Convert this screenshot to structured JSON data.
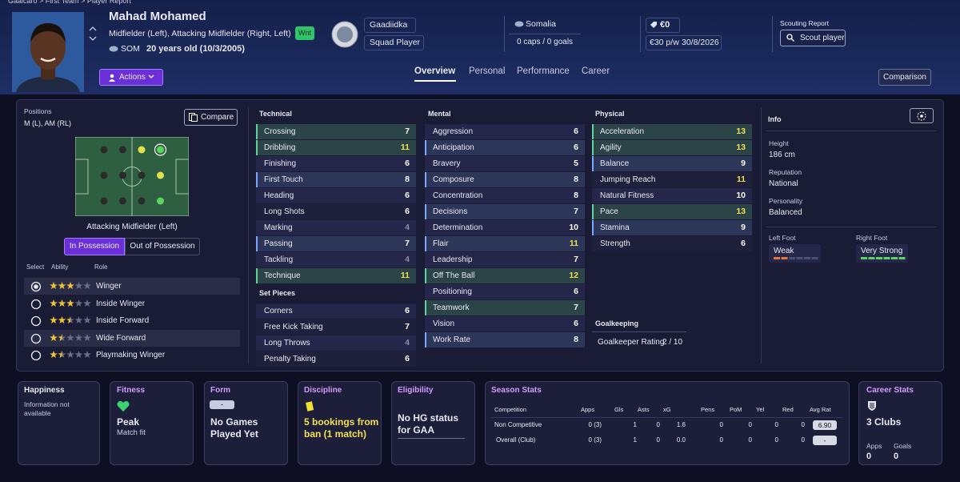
{
  "breadcrumb": "Gaalcaro > First Team > Player Report",
  "header": {
    "name": "Mahad Mohamed",
    "positions": "Midfielder (Left), Attacking Midfielder (Right, Left)",
    "badge": "Wnt",
    "nation_code": "SOM",
    "age": "20 years old (10/3/2005)",
    "club": "Gaadiidka",
    "squad_status": "Squad Player",
    "nationality": "Somalia",
    "caps": "0 caps / 0 goals",
    "value": "€0",
    "wage": "€30 p/w",
    "contract_end": "30/8/2026",
    "scouting_label": "Scouting Report",
    "scout_button": "Scout player",
    "actions": "Actions",
    "comparison": "Comparison"
  },
  "tabs": {
    "items": [
      "Overview",
      "Personal",
      "Performance",
      "Career"
    ],
    "active": 0
  },
  "positions": {
    "title": "Positions",
    "summary": "M (L), AM (RL)",
    "compare": "Compare",
    "selected_position": "Attacking Midfielder (Left)",
    "pitch_dots": [
      [
        "none",
        "none",
        "accomplished",
        "selected"
      ],
      [
        "none",
        "none",
        "none",
        "accomplished"
      ],
      [
        "none",
        "none",
        "none",
        "natural"
      ]
    ],
    "toggle": [
      "In Possession",
      "Out of Possession"
    ],
    "toggle_active": 0,
    "columns": [
      "Select",
      "Ability",
      "Role"
    ],
    "selected_role": 0,
    "roles": [
      {
        "name": "Winger",
        "stars": 3
      },
      {
        "name": "Inside Winger",
        "stars": 3
      },
      {
        "name": "Inside Forward",
        "stars": 2.5
      },
      {
        "name": "Wide Forward",
        "stars": 1.5
      },
      {
        "name": "Playmaking Winger",
        "stars": 1.5
      }
    ]
  },
  "attributes": [
    {
      "title": "Technical",
      "items": [
        {
          "name": "Crossing",
          "value": 7,
          "highlight": "key"
        },
        {
          "name": "Dribbling",
          "value": 11,
          "highlight": "key"
        },
        {
          "name": "Finishing",
          "value": 6,
          "highlight": null
        },
        {
          "name": "First Touch",
          "value": 8,
          "highlight": "preferred"
        },
        {
          "name": "Heading",
          "value": 6,
          "highlight": null
        },
        {
          "name": "Long Shots",
          "value": 6,
          "highlight": null
        },
        {
          "name": "Marking",
          "value": 4,
          "highlight": null
        },
        {
          "name": "Passing",
          "value": 7,
          "highlight": "preferred"
        },
        {
          "name": "Tackling",
          "value": 4,
          "highlight": null
        },
        {
          "name": "Technique",
          "value": 11,
          "highlight": "key"
        }
      ]
    },
    {
      "title": "Set Pieces",
      "items": [
        {
          "name": "Corners",
          "value": 6,
          "highlight": null
        },
        {
          "name": "Free Kick Taking",
          "value": 7,
          "highlight": null
        },
        {
          "name": "Long Throws",
          "value": 4,
          "highlight": null
        },
        {
          "name": "Penalty Taking",
          "value": 6,
          "highlight": null
        }
      ]
    },
    {
      "title": "Mental",
      "items": [
        {
          "name": "Aggression",
          "value": 6,
          "highlight": null
        },
        {
          "name": "Anticipation",
          "value": 6,
          "highlight": "preferred"
        },
        {
          "name": "Bravery",
          "value": 5,
          "highlight": null
        },
        {
          "name": "Composure",
          "value": 8,
          "highlight": "preferred"
        },
        {
          "name": "Concentration",
          "value": 8,
          "highlight": null
        },
        {
          "name": "Decisions",
          "value": 7,
          "highlight": "preferred"
        },
        {
          "name": "Determination",
          "value": 10,
          "highlight": null
        },
        {
          "name": "Flair",
          "value": 11,
          "highlight": "preferred"
        },
        {
          "name": "Leadership",
          "value": 7,
          "highlight": null
        },
        {
          "name": "Off The Ball",
          "value": 12,
          "highlight": "key"
        },
        {
          "name": "Positioning",
          "value": 6,
          "highlight": null
        },
        {
          "name": "Teamwork",
          "value": 7,
          "highlight": "key"
        },
        {
          "name": "Vision",
          "value": 6,
          "highlight": null
        },
        {
          "name": "Work Rate",
          "value": 8,
          "highlight": "preferred"
        }
      ]
    },
    {
      "title": "Physical",
      "items": [
        {
          "name": "Acceleration",
          "value": 13,
          "highlight": "key"
        },
        {
          "name": "Agility",
          "value": 13,
          "highlight": "key"
        },
        {
          "name": "Balance",
          "value": 9,
          "highlight": "preferred"
        },
        {
          "name": "Jumping Reach",
          "value": 11,
          "highlight": null
        },
        {
          "name": "Natural Fitness",
          "value": 10,
          "highlight": null
        },
        {
          "name": "Pace",
          "value": 13,
          "highlight": "key"
        },
        {
          "name": "Stamina",
          "value": 9,
          "highlight": "preferred"
        },
        {
          "name": "Strength",
          "value": 6,
          "highlight": null
        }
      ]
    },
    {
      "title": "Goalkeeping",
      "items": [
        {
          "name": "Goalkeeper Rating",
          "value": "2 / 10",
          "highlight": null
        }
      ]
    }
  ],
  "info": {
    "title": "Info",
    "fields": [
      {
        "label": "Height",
        "value": "186 cm"
      },
      {
        "label": "Reputation",
        "value": "National"
      },
      {
        "label": "Personality",
        "value": "Balanced"
      }
    ],
    "feet": [
      {
        "label": "Left Foot",
        "rating": "Weak",
        "level": 2,
        "color": "#e8743b"
      },
      {
        "label": "Right Foot",
        "rating": "Very Strong",
        "level": 6,
        "color": "#5fd35f"
      }
    ]
  },
  "cards": {
    "happiness": {
      "title": "Happiness",
      "text": "Information not available"
    },
    "fitness": {
      "title": "Fitness",
      "status": "Peak",
      "detail": "Match fit"
    },
    "form": {
      "title": "Form",
      "pill": "-",
      "text": "No Games Played Yet"
    },
    "discipline": {
      "title": "Discipline",
      "text": "5 bookings from ban (1 match)"
    },
    "eligibility": {
      "title": "Eligibility",
      "text": "No HG status for GAA"
    },
    "season_stats": {
      "title": "Season Stats",
      "columns": [
        "Competition",
        "Apps",
        "Gls",
        "Asts",
        "xG",
        "Pens",
        "PoM",
        "Yel",
        "Red",
        "Avg Rat"
      ],
      "rows": [
        [
          "Non Competitive",
          "0 (3)",
          "1",
          "0",
          "1.6",
          "0",
          "0",
          "0",
          "0",
          "6.90"
        ],
        [
          "Overall (Club)",
          "0 (3)",
          "1",
          "0",
          "0.0",
          "0",
          "0",
          "0",
          "0",
          "-"
        ]
      ]
    },
    "career_stats": {
      "title": "Career Stats",
      "clubs": "3 Clubs",
      "apps_label": "Apps",
      "apps": "0",
      "goals_label": "Goals",
      "goals": "0"
    }
  }
}
